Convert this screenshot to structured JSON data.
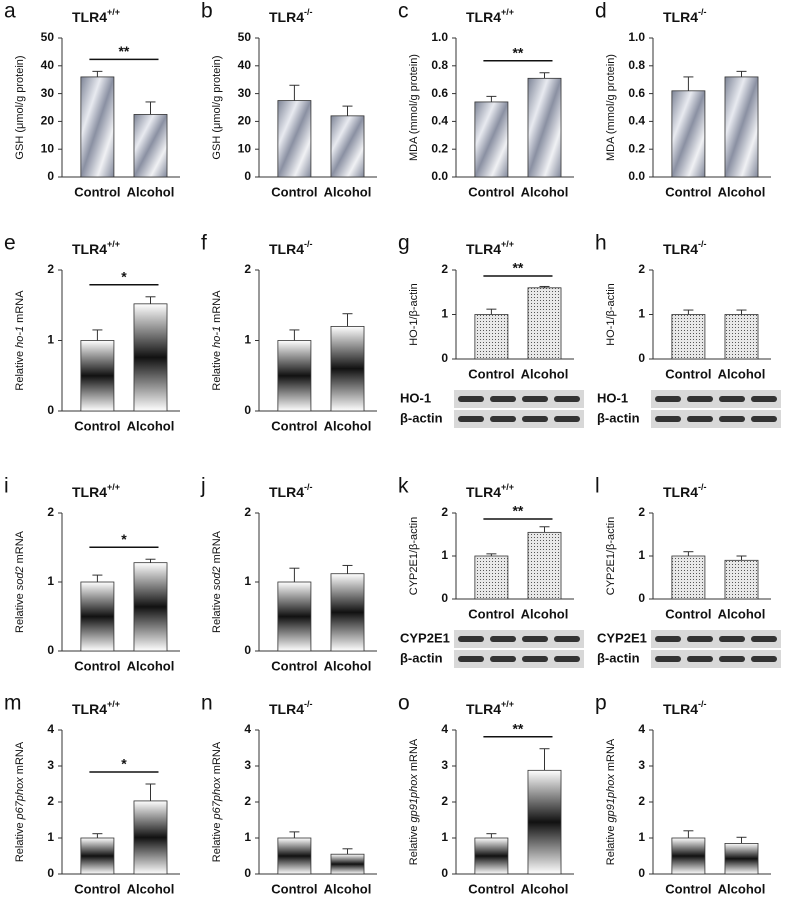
{
  "chart_data": [
    {
      "type": "bar",
      "panel": "a",
      "title": "TLR4",
      "title_sup": "+/+",
      "ylabel": "GSH (μmol/g protein)",
      "categories": [
        "Control",
        "Alcohol"
      ],
      "values": [
        36,
        22.5
      ],
      "errors": [
        2,
        4.5
      ],
      "ylim": [
        0,
        50
      ],
      "yticks": [
        0,
        10,
        20,
        30,
        40,
        50
      ],
      "significance": "**",
      "bar_style": "diagonal"
    },
    {
      "type": "bar",
      "panel": "b",
      "title": "TLR4",
      "title_sup": "-/-",
      "ylabel": "GSH (μmol/g protein)",
      "categories": [
        "Control",
        "Alcohol"
      ],
      "values": [
        27.5,
        22
      ],
      "errors": [
        5.5,
        3.5
      ],
      "ylim": [
        0,
        50
      ],
      "yticks": [
        0,
        10,
        20,
        30,
        40,
        50
      ],
      "bar_style": "diagonal"
    },
    {
      "type": "bar",
      "panel": "c",
      "title": "TLR4",
      "title_sup": "+/+",
      "ylabel": "MDA (mmol/g  protein)",
      "categories": [
        "Control",
        "Alcohol"
      ],
      "values": [
        0.54,
        0.71
      ],
      "errors": [
        0.04,
        0.04
      ],
      "ylim": [
        0,
        1
      ],
      "yticks": [
        {
          "value": 0,
          "label": "0.0"
        },
        0.2,
        0.4,
        0.6,
        0.8,
        {
          "value": 1,
          "label": "1.0"
        }
      ],
      "significance": "**",
      "bar_style": "diagonal"
    },
    {
      "type": "bar",
      "panel": "d",
      "title": "TLR4",
      "title_sup": "-/-",
      "ylabel": "MDA (mmol/g  protein)",
      "categories": [
        "Control",
        "Alcohol"
      ],
      "values": [
        0.62,
        0.72
      ],
      "errors": [
        0.1,
        0.04
      ],
      "ylim": [
        0,
        1
      ],
      "yticks": [
        {
          "value": 0,
          "label": "0.0"
        },
        0.2,
        0.4,
        0.6,
        0.8,
        {
          "value": 1,
          "label": "1.0"
        }
      ],
      "bar_style": "diagonal"
    },
    {
      "type": "bar",
      "panel": "e",
      "title": "TLR4",
      "title_sup": "+/+",
      "ylabel": "Relative",
      "gene": "ho-1",
      "ylabel_unit": "mRNA",
      "categories": [
        "Control",
        "Alcohol"
      ],
      "values": [
        1,
        1.52
      ],
      "errors": [
        0.15,
        0.1
      ],
      "ylim": [
        0,
        2
      ],
      "yticks": [
        0,
        1,
        2
      ],
      "significance": "*",
      "bar_style": "vertical"
    },
    {
      "type": "bar",
      "panel": "f",
      "title": "TLR4",
      "title_sup": "-/-",
      "ylabel": "Relative",
      "gene": "ho-1",
      "ylabel_unit": "mRNA",
      "categories": [
        "Control",
        "Alcohol"
      ],
      "values": [
        1,
        1.2
      ],
      "errors": [
        0.15,
        0.18
      ],
      "ylim": [
        0,
        2
      ],
      "yticks": [
        0,
        1,
        2
      ],
      "bar_style": "vertical"
    },
    {
      "type": "bar",
      "panel": "g",
      "title": "TLR4",
      "title_sup": "+/+",
      "ylabel": "HO-1/β-actin",
      "categories": [
        "Control",
        "Alcohol"
      ],
      "values": [
        1,
        1.6
      ],
      "errors": [
        0.12,
        0.03
      ],
      "ylim": [
        0,
        2
      ],
      "yticks": [
        0,
        1,
        2
      ],
      "significance": "**",
      "bar_style": "hatch",
      "blot": [
        "HO-1",
        "β-actin"
      ]
    },
    {
      "type": "bar",
      "panel": "h",
      "title": "TLR4",
      "title_sup": "-/-",
      "ylabel": "HO-1/β-actin",
      "categories": [
        "Control",
        "Alcohol"
      ],
      "values": [
        1,
        1
      ],
      "errors": [
        0.1,
        0.1
      ],
      "ylim": [
        0,
        2
      ],
      "yticks": [
        0,
        1,
        2
      ],
      "bar_style": "hatch",
      "blot": [
        "HO-1",
        "β-actin"
      ]
    },
    {
      "type": "bar",
      "panel": "i",
      "title": "TLR4",
      "title_sup": "+/+",
      "ylabel": "Relative",
      "gene": "sod2",
      "ylabel_unit": "mRNA",
      "categories": [
        "Control",
        "Alcohol"
      ],
      "values": [
        1,
        1.28
      ],
      "errors": [
        0.1,
        0.05
      ],
      "ylim": [
        0,
        2
      ],
      "yticks": [
        0,
        1,
        2
      ],
      "significance": "*",
      "bar_style": "vertical"
    },
    {
      "type": "bar",
      "panel": "j",
      "title": "TLR4",
      "title_sup": "-/-",
      "ylabel": "Relative",
      "gene": "sod2",
      "ylabel_unit": "mRNA",
      "categories": [
        "Control",
        "Alcohol"
      ],
      "values": [
        1,
        1.12
      ],
      "errors": [
        0.2,
        0.12
      ],
      "ylim": [
        0,
        2
      ],
      "yticks": [
        0,
        1,
        2
      ],
      "bar_style": "vertical"
    },
    {
      "type": "bar",
      "panel": "k",
      "title": "TLR4",
      "title_sup": "+/+",
      "ylabel": "CYP2E1/β-actin",
      "categories": [
        "Control",
        "Alcohol"
      ],
      "values": [
        1,
        1.55
      ],
      "errors": [
        0.05,
        0.13
      ],
      "ylim": [
        0,
        2
      ],
      "yticks": [
        0,
        1,
        2
      ],
      "significance": "**",
      "bar_style": "hatch",
      "blot": [
        "CYP2E1",
        "β-actin"
      ]
    },
    {
      "type": "bar",
      "panel": "l",
      "title": "TLR4",
      "title_sup": "-/-",
      "ylabel": "CYP2E1/β-actin",
      "categories": [
        "Control",
        "Alcohol"
      ],
      "values": [
        1,
        0.9
      ],
      "errors": [
        0.1,
        0.1
      ],
      "ylim": [
        0,
        2
      ],
      "yticks": [
        0,
        1,
        2
      ],
      "bar_style": "hatch",
      "blot": [
        "CYP2E1",
        "β-actin"
      ]
    },
    {
      "type": "bar",
      "panel": "m",
      "title": "TLR4",
      "title_sup": "+/+",
      "ylabel": "Relative",
      "gene": "p67phox",
      "ylabel_unit": "mRNA",
      "categories": [
        "Control",
        "Alcohol"
      ],
      "values": [
        1,
        2.03
      ],
      "errors": [
        0.12,
        0.47
      ],
      "ylim": [
        0,
        4
      ],
      "yticks": [
        0,
        1,
        2,
        3,
        4
      ],
      "significance": "*",
      "bar_style": "vertical"
    },
    {
      "type": "bar",
      "panel": "n",
      "title": "TLR4",
      "title_sup": "-/-",
      "ylabel": "Relative",
      "gene": "p67phox",
      "ylabel_unit": "mRNA",
      "categories": [
        "Control",
        "Alcohol"
      ],
      "values": [
        1,
        0.55
      ],
      "errors": [
        0.17,
        0.15
      ],
      "ylim": [
        0,
        4
      ],
      "yticks": [
        0,
        1,
        2,
        3,
        4
      ],
      "bar_style": "vertical"
    },
    {
      "type": "bar",
      "panel": "o",
      "title": "TLR4",
      "title_sup": "+/+",
      "ylabel": "Relative",
      "gene": "gp91phox",
      "ylabel_unit": "mRNA",
      "categories": [
        "Control",
        "Alcohol"
      ],
      "values": [
        1,
        2.88
      ],
      "errors": [
        0.12,
        0.6
      ],
      "ylim": [
        0,
        4
      ],
      "yticks": [
        0,
        1,
        2,
        3,
        4
      ],
      "significance": "**",
      "bar_style": "vertical"
    },
    {
      "type": "bar",
      "panel": "p",
      "title": "TLR4",
      "title_sup": "-/-",
      "ylabel": "Relative",
      "gene": "gp91phox",
      "ylabel_unit": "mRNA",
      "categories": [
        "Control",
        "Alcohol"
      ],
      "values": [
        1,
        0.85
      ],
      "errors": [
        0.2,
        0.17
      ],
      "ylim": [
        0,
        4
      ],
      "yticks": [
        0,
        1,
        2,
        3,
        4
      ],
      "bar_style": "vertical"
    }
  ]
}
